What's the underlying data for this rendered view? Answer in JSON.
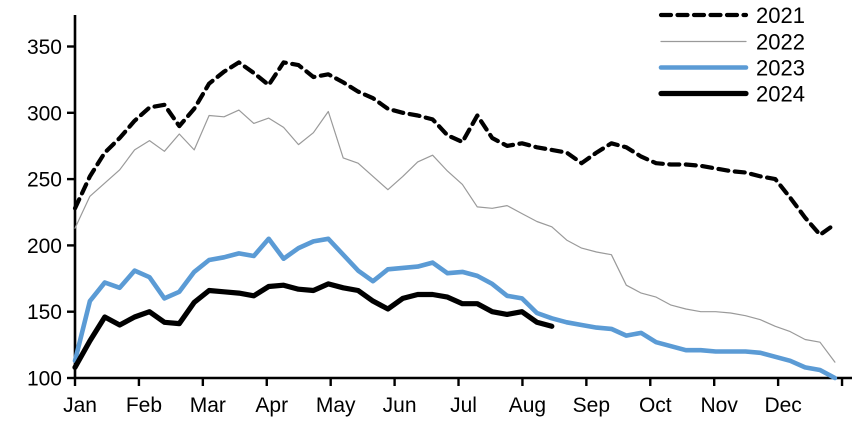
{
  "chart_data": {
    "type": "line",
    "title": "",
    "xlabel": "",
    "ylabel": "",
    "x_categories": [
      "Jan",
      "Feb",
      "Mar",
      "Apr",
      "May",
      "Jun",
      "Jul",
      "Aug",
      "Sep",
      "Oct",
      "Nov",
      "Dec"
    ],
    "x_resolution": "weekly",
    "y_ticks": [
      100,
      150,
      200,
      250,
      300,
      350
    ],
    "ylim": [
      100,
      372
    ],
    "grid": false,
    "legend_position": "top-right",
    "series": [
      {
        "name": "2021",
        "color": "#000000",
        "style": "dashed",
        "width": 4.2,
        "values": [
          228,
          252,
          270,
          281,
          294,
          304,
          306,
          290,
          303,
          322,
          331,
          338,
          330,
          321,
          338,
          336,
          327,
          329,
          323,
          316,
          311,
          303,
          300,
          298,
          295,
          283,
          278,
          298,
          281,
          275,
          277,
          274,
          272,
          270,
          262,
          270,
          277,
          274,
          267,
          262,
          261,
          261,
          260,
          258,
          256,
          255,
          252,
          250,
          236,
          221,
          208,
          216
        ]
      },
      {
        "name": "2022",
        "color": "#9a9a9a",
        "style": "solid",
        "width": 1.2,
        "values": [
          213,
          237,
          247,
          257,
          272,
          279,
          271,
          284,
          272,
          298,
          297,
          302,
          292,
          296,
          289,
          276,
          285,
          301,
          266,
          262,
          252,
          242,
          252,
          263,
          268,
          256,
          246,
          229,
          228,
          230,
          224,
          218,
          214,
          204,
          198,
          195,
          193,
          170,
          164,
          161,
          155,
          152,
          150,
          150,
          149,
          147,
          144,
          139,
          135,
          129,
          127,
          112
        ]
      },
      {
        "name": "2023",
        "color": "#5b9bd5",
        "style": "solid",
        "width": 4.6,
        "values": [
          113,
          158,
          172,
          168,
          181,
          176,
          160,
          165,
          180,
          189,
          191,
          194,
          192,
          205,
          190,
          198,
          203,
          205,
          193,
          181,
          173,
          182,
          183,
          184,
          187,
          179,
          180,
          177,
          171,
          162,
          160,
          149,
          145,
          142,
          140,
          138,
          137,
          132,
          134,
          127,
          124,
          121,
          121,
          120,
          120,
          120,
          119,
          116,
          113,
          108,
          106,
          100
        ]
      },
      {
        "name": "2024",
        "color": "#000000",
        "style": "solid",
        "width": 5.2,
        "values": [
          108,
          128,
          146,
          140,
          146,
          150,
          142,
          141,
          157,
          166,
          165,
          164,
          162,
          169,
          170,
          167,
          166,
          171,
          168,
          166,
          158,
          152,
          160,
          163,
          163,
          161,
          156,
          156,
          150,
          148,
          150,
          142,
          139
        ]
      }
    ]
  },
  "legend": {
    "items": [
      {
        "label": "2021"
      },
      {
        "label": "2022"
      },
      {
        "label": "2023"
      },
      {
        "label": "2024"
      }
    ]
  }
}
